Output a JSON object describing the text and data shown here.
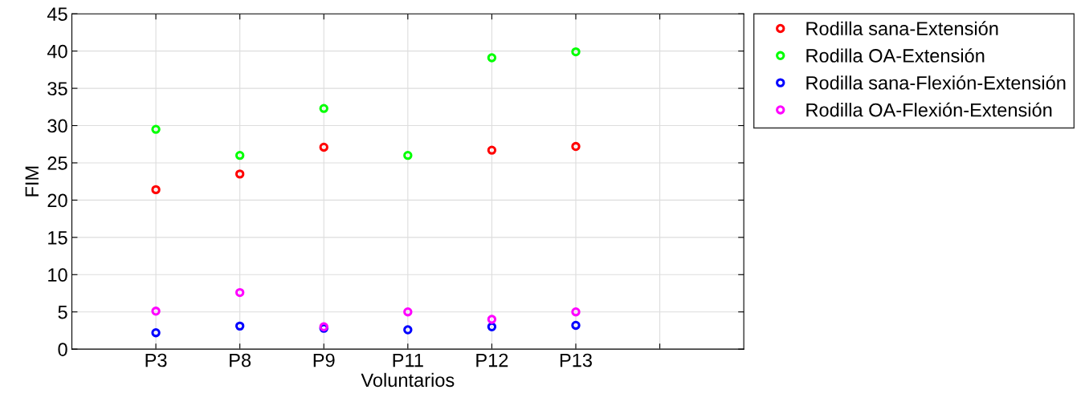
{
  "chart_data": {
    "type": "scatter",
    "xlabel": "Voluntarios",
    "ylabel": "FIM",
    "categories": [
      "P3",
      "P8",
      "P9",
      "P11",
      "P12",
      "P13",
      null
    ],
    "ylim": [
      0,
      45
    ],
    "yticks": [
      0,
      5,
      10,
      15,
      20,
      25,
      30,
      35,
      40,
      45
    ],
    "grid": true,
    "legend": "top right",
    "marker": "circle",
    "series": [
      {
        "name": "Rodilla sana-Extensión",
        "color": "#ff0000",
        "values": [
          21.4,
          23.5,
          27.1,
          null,
          26.7,
          27.2,
          null
        ]
      },
      {
        "name": "Rodilla OA-Extensión",
        "color": "#00ff00",
        "values": [
          29.5,
          26.0,
          32.3,
          26.0,
          39.1,
          39.9,
          null
        ]
      },
      {
        "name": "Rodilla sana-Flexión-Extensión",
        "color": "#0000ff",
        "values": [
          2.2,
          3.1,
          2.8,
          2.6,
          3.0,
          3.2,
          null
        ]
      },
      {
        "name": "Rodilla OA-Flexión-Extensión",
        "color": "#ff00ff",
        "values": [
          5.1,
          7.6,
          3.0,
          5.0,
          4.0,
          5.0,
          null
        ]
      }
    ]
  }
}
